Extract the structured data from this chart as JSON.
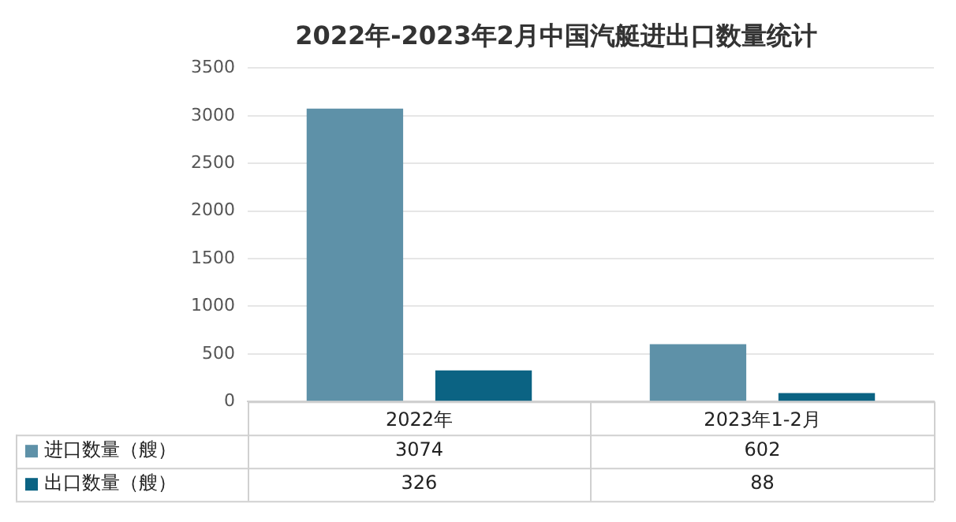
{
  "chart_data": {
    "type": "bar",
    "title": "2022年-2023年2月中国汽艇进出口数量统计",
    "categories": [
      "2022年",
      "2023年1-2月"
    ],
    "series": [
      {
        "name": "进口数量（艘）",
        "color": "#5e91a8",
        "values": [
          3074,
          602
        ]
      },
      {
        "name": "出口数量（艘）",
        "color": "#0b6383",
        "values": [
          326,
          88
        ]
      }
    ],
    "ylim": [
      0,
      3500
    ],
    "yticks": [
      0,
      500,
      1000,
      1500,
      2000,
      2500,
      3000,
      3500
    ],
    "grid": "y",
    "legend": "bottom left",
    "data_labels": true
  }
}
